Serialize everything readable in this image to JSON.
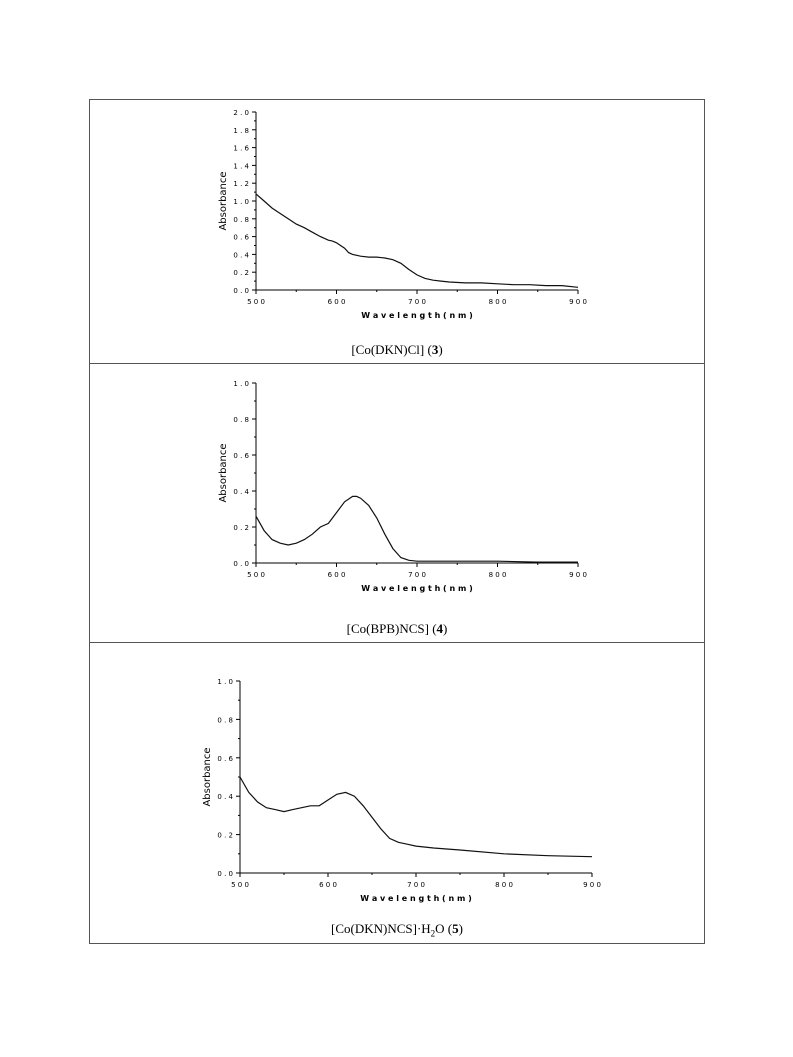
{
  "chart_data": [
    {
      "type": "line",
      "caption_prefix": "[Co(DKN)Cl] (",
      "caption_bold": "3",
      "caption_suffix": ")",
      "xlabel": "W a v e l e n g t h  ( n m )",
      "ylabel": "Absorbance",
      "xlim": [
        500,
        900
      ],
      "ylim": [
        0.0,
        2.0
      ],
      "xticks": [
        "5 0 0",
        "6 0 0",
        "7 0 0",
        "8 0 0",
        "9 0 0"
      ],
      "yticks": [
        "0 . 0",
        "0 . 2",
        "0 . 4",
        "0 . 6",
        "0 . 8",
        "1 . 0",
        "1 . 2",
        "1 . 4",
        "1 . 6",
        "1 . 8",
        "2 . 0"
      ],
      "x": [
        500,
        510,
        520,
        530,
        540,
        550,
        560,
        570,
        580,
        590,
        595,
        600,
        610,
        615,
        620,
        630,
        640,
        650,
        660,
        670,
        680,
        690,
        700,
        710,
        720,
        730,
        740,
        760,
        780,
        800,
        820,
        840,
        860,
        880,
        900
      ],
      "y": [
        1.08,
        1.0,
        0.92,
        0.86,
        0.8,
        0.74,
        0.7,
        0.65,
        0.6,
        0.56,
        0.55,
        0.53,
        0.47,
        0.42,
        0.4,
        0.38,
        0.37,
        0.37,
        0.36,
        0.34,
        0.3,
        0.23,
        0.17,
        0.13,
        0.11,
        0.1,
        0.09,
        0.08,
        0.08,
        0.07,
        0.06,
        0.06,
        0.05,
        0.05,
        0.03
      ]
    },
    {
      "type": "line",
      "caption_prefix": "[Co(BPB)NCS] (",
      "caption_bold": "4",
      "caption_suffix": ")",
      "xlabel": "W a v e l e n g t h  ( n m )",
      "ylabel": "Absorbance",
      "xlim": [
        500,
        900
      ],
      "ylim": [
        0.0,
        1.0
      ],
      "xticks": [
        "5 0 0",
        "6 0 0",
        "7 0 0",
        "8 0 0",
        "9 0 0"
      ],
      "yticks": [
        "0 . 0",
        "0 . 2",
        "0 . 4",
        "0 . 6",
        "0 . 8",
        "1 . 0"
      ],
      "x": [
        500,
        510,
        520,
        530,
        540,
        550,
        560,
        570,
        580,
        590,
        600,
        610,
        620,
        625,
        630,
        640,
        650,
        660,
        670,
        680,
        690,
        700,
        720,
        750,
        800,
        850,
        900
      ],
      "y": [
        0.26,
        0.18,
        0.13,
        0.11,
        0.1,
        0.11,
        0.13,
        0.16,
        0.2,
        0.22,
        0.28,
        0.34,
        0.37,
        0.37,
        0.36,
        0.32,
        0.25,
        0.16,
        0.08,
        0.03,
        0.015,
        0.01,
        0.01,
        0.01,
        0.01,
        0.005,
        0.005
      ]
    },
    {
      "type": "line",
      "caption_prefix": "[Co(DKN)NCS]·H",
      "caption_sub": "2",
      "caption_mid": "O (",
      "caption_bold": "5",
      "caption_suffix": ")",
      "xlabel": "W a v e l e n g t h  ( n m )",
      "ylabel": "Absorbance",
      "xlim": [
        500,
        900
      ],
      "ylim": [
        0.0,
        1.0
      ],
      "xticks": [
        "5 0 0",
        "6 0 0",
        "7 0 0",
        "8 0 0",
        "9 0 0"
      ],
      "yticks": [
        "0 . 0",
        "0 . 2",
        "0 . 4",
        "0 . 6",
        "0 . 8",
        "1 . 0"
      ],
      "x": [
        500,
        510,
        520,
        530,
        540,
        550,
        560,
        570,
        580,
        590,
        600,
        610,
        620,
        630,
        640,
        650,
        660,
        670,
        680,
        690,
        700,
        720,
        750,
        800,
        850,
        900
      ],
      "y": [
        0.5,
        0.42,
        0.37,
        0.34,
        0.33,
        0.32,
        0.33,
        0.34,
        0.35,
        0.35,
        0.38,
        0.41,
        0.42,
        0.4,
        0.35,
        0.29,
        0.23,
        0.18,
        0.16,
        0.15,
        0.14,
        0.13,
        0.12,
        0.1,
        0.09,
        0.085
      ]
    }
  ]
}
